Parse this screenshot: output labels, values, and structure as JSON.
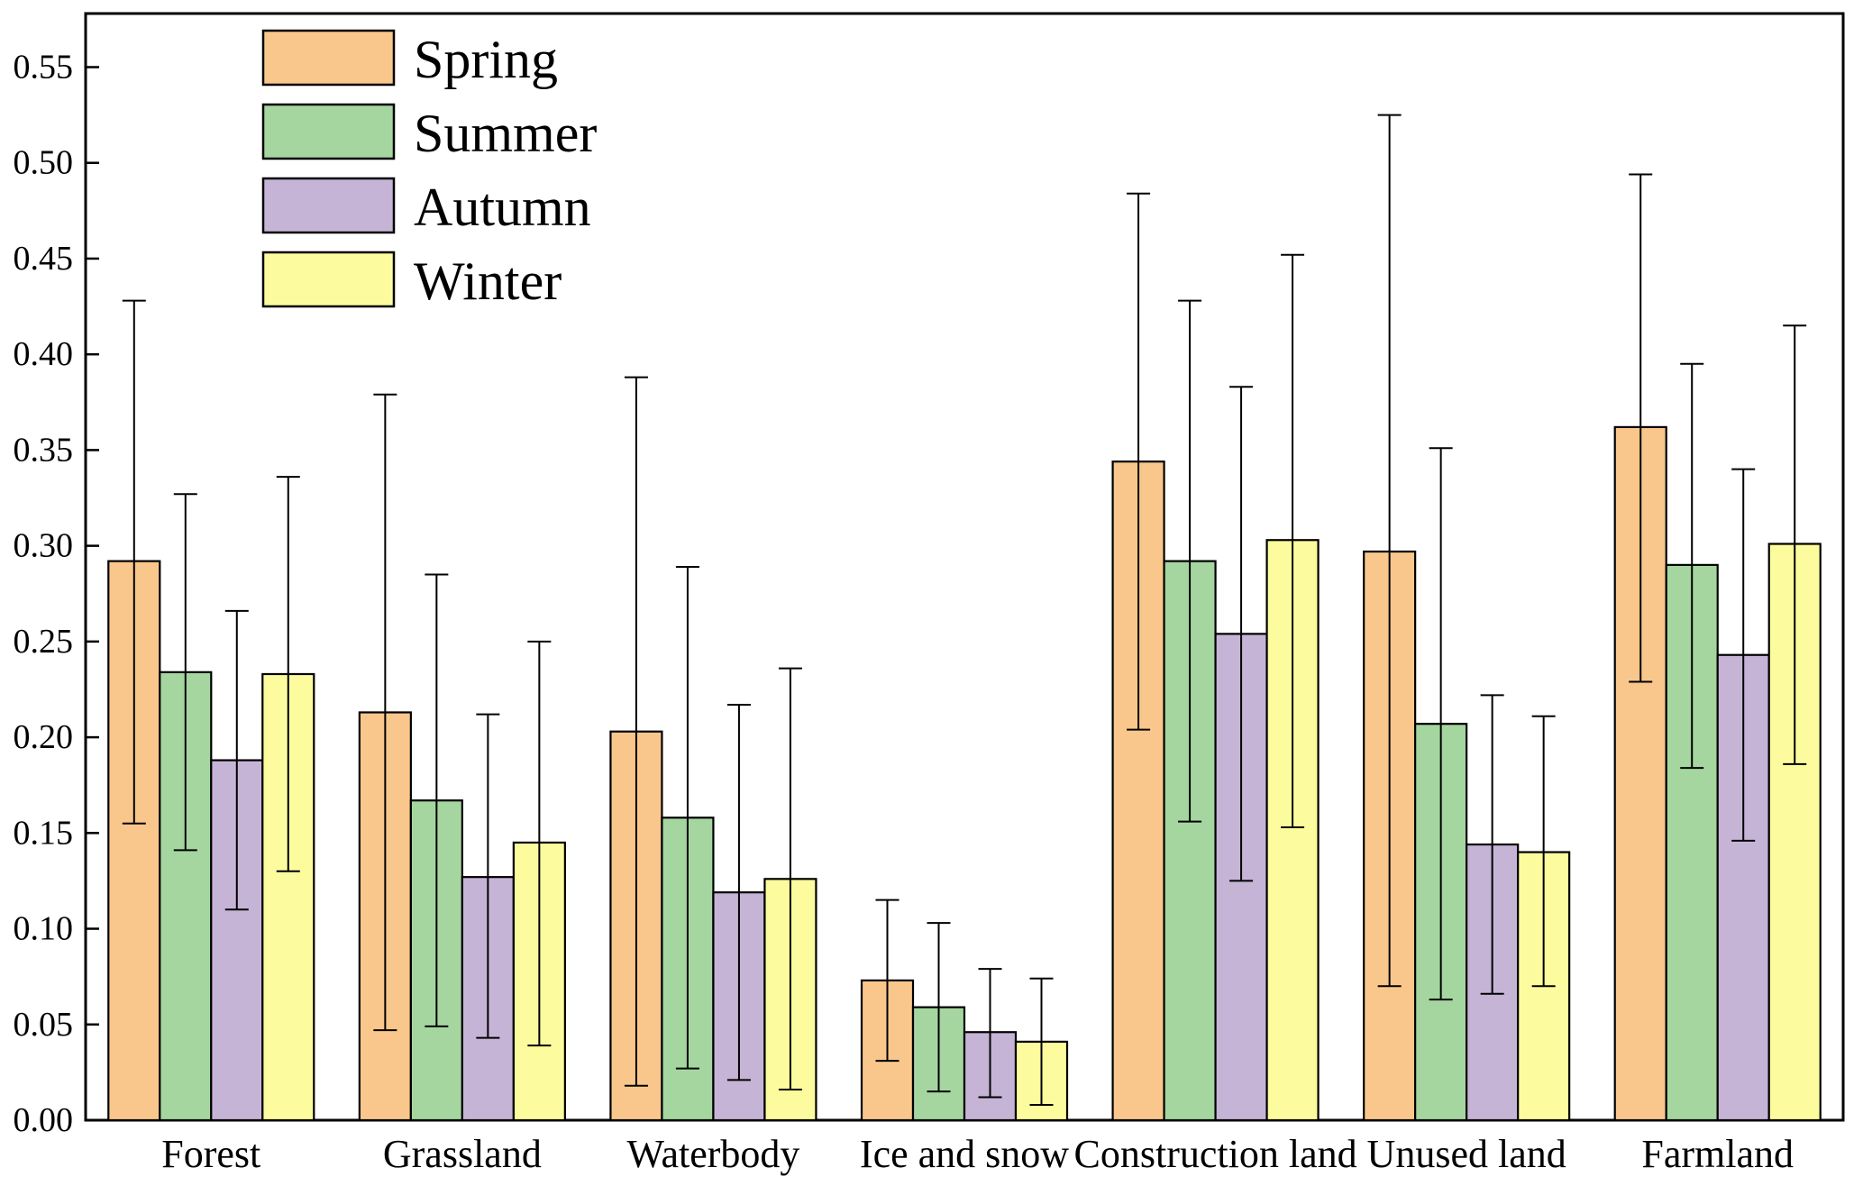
{
  "chart_data": {
    "type": "bar",
    "title": "",
    "xlabel": "",
    "ylabel": "",
    "grid": false,
    "legend_position": "top-left",
    "ylim": [
      0,
      0.578
    ],
    "ytick_labels": [
      "0.00",
      "0.05",
      "0.10",
      "0.15",
      "0.20",
      "0.25",
      "0.30",
      "0.35",
      "0.40",
      "0.45",
      "0.50",
      "0.55"
    ],
    "categories": [
      "Forest",
      "Grassland",
      "Waterbody",
      "Ice and snow",
      "Construction land",
      "Unused land",
      "Farmland"
    ],
    "series": [
      {
        "name": "Spring",
        "color": "#F9C78C",
        "values": [
          0.292,
          0.213,
          0.203,
          0.073,
          0.344,
          0.297,
          0.362
        ],
        "err_lo": [
          0.155,
          0.047,
          0.018,
          0.031,
          0.204,
          0.07,
          0.229
        ],
        "err_hi": [
          0.428,
          0.379,
          0.388,
          0.115,
          0.484,
          0.525,
          0.494
        ]
      },
      {
        "name": "Summer",
        "color": "#A5D6A0",
        "values": [
          0.234,
          0.167,
          0.158,
          0.059,
          0.292,
          0.207,
          0.29
        ],
        "err_lo": [
          0.141,
          0.049,
          0.027,
          0.015,
          0.156,
          0.063,
          0.184
        ],
        "err_hi": [
          0.327,
          0.285,
          0.289,
          0.103,
          0.428,
          0.351,
          0.395
        ]
      },
      {
        "name": "Autumn",
        "color": "#C6B4D6",
        "values": [
          0.188,
          0.127,
          0.119,
          0.046,
          0.254,
          0.144,
          0.243
        ],
        "err_lo": [
          0.11,
          0.043,
          0.021,
          0.012,
          0.125,
          0.066,
          0.146
        ],
        "err_hi": [
          0.266,
          0.212,
          0.217,
          0.079,
          0.383,
          0.222,
          0.34
        ]
      },
      {
        "name": "Winter",
        "color": "#FCFC9E",
        "values": [
          0.233,
          0.145,
          0.126,
          0.041,
          0.303,
          0.14,
          0.301
        ],
        "err_lo": [
          0.13,
          0.039,
          0.016,
          0.008,
          0.153,
          0.07,
          0.186
        ],
        "err_hi": [
          0.336,
          0.25,
          0.236,
          0.074,
          0.452,
          0.211,
          0.415
        ]
      }
    ],
    "style": {
      "bar_edge_color": "#000000",
      "error_bar_color": "#000000",
      "frame_color": "#000000",
      "background": "#ffffff"
    }
  }
}
